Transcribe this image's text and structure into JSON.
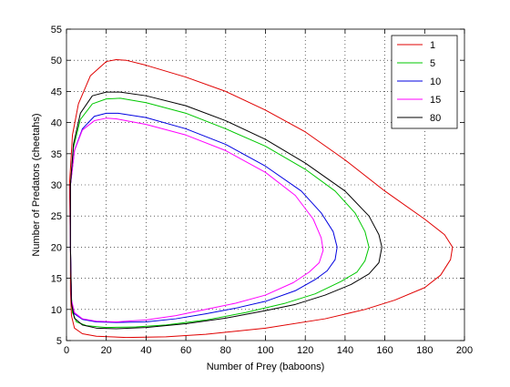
{
  "chart_data": {
    "type": "line",
    "title": "",
    "xlabel": "Number of Prey (baboons)",
    "ylabel": "Number of Predators (cheetahs)",
    "xlim": [
      0,
      200
    ],
    "ylim": [
      5,
      55
    ],
    "xticks": [
      0,
      20,
      40,
      60,
      80,
      100,
      120,
      140,
      160,
      180,
      200
    ],
    "yticks": [
      5,
      10,
      15,
      20,
      25,
      30,
      35,
      40,
      45,
      50,
      55
    ],
    "grid": true,
    "legend_position": "top-right",
    "series": [
      {
        "name": "1",
        "color": "#e00000",
        "points": [
          [
            2,
            20
          ],
          [
            1.5,
            30
          ],
          [
            3,
            38
          ],
          [
            6,
            43
          ],
          [
            12,
            47.5
          ],
          [
            20,
            49.8
          ],
          [
            25,
            50.1
          ],
          [
            30,
            50
          ],
          [
            40,
            49.2
          ],
          [
            60,
            47.3
          ],
          [
            80,
            45
          ],
          [
            100,
            42
          ],
          [
            120,
            38.5
          ],
          [
            140,
            34
          ],
          [
            160,
            29
          ],
          [
            180,
            24.5
          ],
          [
            190,
            22
          ],
          [
            194,
            20
          ],
          [
            193,
            18
          ],
          [
            188,
            15.5
          ],
          [
            180,
            13.5
          ],
          [
            165,
            11.5
          ],
          [
            150,
            10
          ],
          [
            130,
            8.5
          ],
          [
            100,
            7
          ],
          [
            70,
            6
          ],
          [
            50,
            5.6
          ],
          [
            30,
            5.5
          ],
          [
            15,
            5.7
          ],
          [
            8,
            6.1
          ],
          [
            4,
            7
          ],
          [
            2.5,
            9
          ],
          [
            2,
            13
          ],
          [
            2,
            20
          ]
        ]
      },
      {
        "name": "5",
        "color": "#00c800",
        "points": [
          [
            2,
            20
          ],
          [
            2,
            30
          ],
          [
            3.5,
            36
          ],
          [
            7,
            40.5
          ],
          [
            13,
            43
          ],
          [
            20,
            43.8
          ],
          [
            27,
            43.9
          ],
          [
            40,
            43.2
          ],
          [
            60,
            41.5
          ],
          [
            80,
            39
          ],
          [
            100,
            36.2
          ],
          [
            120,
            32.5
          ],
          [
            135,
            29
          ],
          [
            145,
            25.5
          ],
          [
            150,
            22.5
          ],
          [
            152,
            20
          ],
          [
            150,
            17.8
          ],
          [
            146,
            16
          ],
          [
            138,
            14.5
          ],
          [
            125,
            12.5
          ],
          [
            110,
            11
          ],
          [
            90,
            9.5
          ],
          [
            70,
            8.3
          ],
          [
            50,
            7.5
          ],
          [
            35,
            7.2
          ],
          [
            20,
            7.1
          ],
          [
            10,
            7.4
          ],
          [
            5,
            8
          ],
          [
            3,
            9.5
          ],
          [
            2.5,
            12
          ],
          [
            2,
            20
          ]
        ]
      },
      {
        "name": "10",
        "color": "#0000e0",
        "points": [
          [
            2,
            20
          ],
          [
            2,
            30
          ],
          [
            4,
            35.5
          ],
          [
            8,
            39
          ],
          [
            14,
            41
          ],
          [
            20,
            41.5
          ],
          [
            26,
            41.5
          ],
          [
            40,
            40.8
          ],
          [
            60,
            39
          ],
          [
            80,
            36.5
          ],
          [
            100,
            33
          ],
          [
            118,
            29
          ],
          [
            128,
            25.5
          ],
          [
            134,
            22.5
          ],
          [
            136,
            20
          ],
          [
            135,
            18
          ],
          [
            131,
            16.2
          ],
          [
            125,
            14.8
          ],
          [
            115,
            13
          ],
          [
            100,
            11.3
          ],
          [
            85,
            10.2
          ],
          [
            70,
            9.3
          ],
          [
            55,
            8.5
          ],
          [
            40,
            8
          ],
          [
            25,
            7.9
          ],
          [
            15,
            8
          ],
          [
            8,
            8.4
          ],
          [
            4,
            9.3
          ],
          [
            2.5,
            11.5
          ],
          [
            2,
            20
          ]
        ]
      },
      {
        "name": "15",
        "color": "#ff00ff",
        "points": [
          [
            2,
            20
          ],
          [
            2,
            30
          ],
          [
            4,
            35.5
          ],
          [
            8,
            38.8
          ],
          [
            14,
            40.3
          ],
          [
            20,
            40.7
          ],
          [
            25,
            40.6
          ],
          [
            40,
            39.7
          ],
          [
            60,
            38
          ],
          [
            80,
            35.5
          ],
          [
            100,
            32
          ],
          [
            115,
            28.3
          ],
          [
            124,
            24.5
          ],
          [
            128,
            21.5
          ],
          [
            129,
            19.5
          ],
          [
            127,
            17.5
          ],
          [
            122,
            16
          ],
          [
            114,
            14.3
          ],
          [
            100,
            12.3
          ],
          [
            85,
            11
          ],
          [
            70,
            10
          ],
          [
            55,
            9
          ],
          [
            40,
            8.3
          ],
          [
            25,
            8
          ],
          [
            15,
            8.1
          ],
          [
            8,
            8.5
          ],
          [
            4,
            9.5
          ],
          [
            2.5,
            11.5
          ],
          [
            2,
            20
          ]
        ]
      },
      {
        "name": "80",
        "color": "#000000",
        "points": [
          [
            2,
            20
          ],
          [
            2,
            30
          ],
          [
            3.5,
            36.5
          ],
          [
            7,
            41.5
          ],
          [
            13,
            44.3
          ],
          [
            20,
            44.9
          ],
          [
            27,
            44.9
          ],
          [
            40,
            44.3
          ],
          [
            60,
            42.7
          ],
          [
            80,
            40.3
          ],
          [
            100,
            37.3
          ],
          [
            120,
            33.5
          ],
          [
            140,
            29
          ],
          [
            152,
            25
          ],
          [
            157,
            22
          ],
          [
            158.5,
            20
          ],
          [
            157,
            17.5
          ],
          [
            152,
            15.7
          ],
          [
            143,
            14
          ],
          [
            130,
            12.3
          ],
          [
            115,
            10.8
          ],
          [
            100,
            9.8
          ],
          [
            80,
            8.6
          ],
          [
            60,
            7.7
          ],
          [
            40,
            7.1
          ],
          [
            25,
            6.9
          ],
          [
            15,
            7
          ],
          [
            8,
            7.5
          ],
          [
            4,
            8.6
          ],
          [
            2.5,
            11
          ],
          [
            2,
            20
          ]
        ]
      }
    ]
  }
}
